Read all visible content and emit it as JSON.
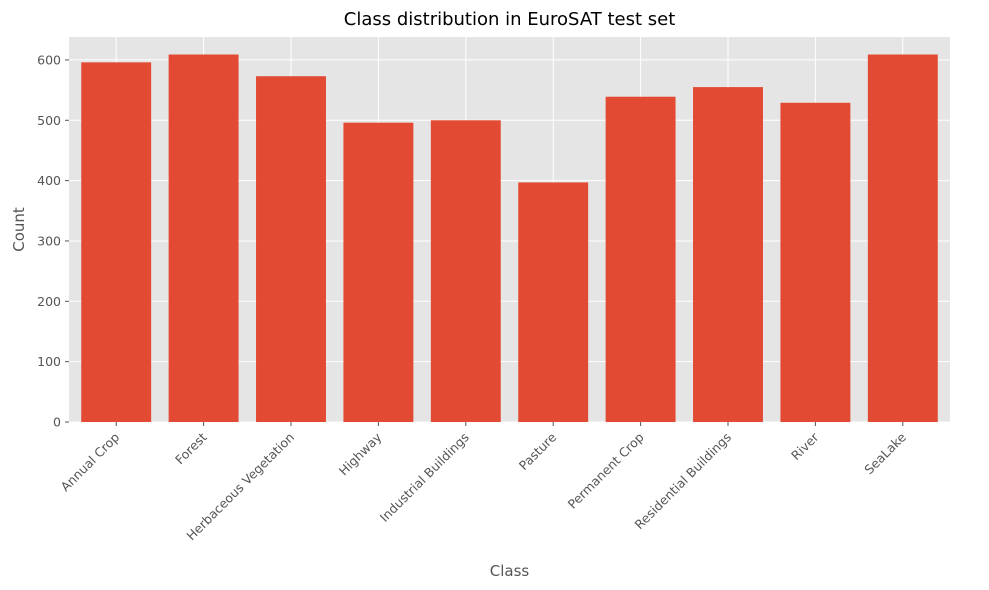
{
  "chart_data": {
    "type": "bar",
    "title": "Class distribution in EuroSAT test set",
    "xlabel": "Class",
    "ylabel": "Count",
    "categories": [
      "Annual Crop",
      "Forest",
      "Herbaceous Vegetation",
      "Highway",
      "Industrial Buildings",
      "Pasture",
      "Permanent Crop",
      "Residential Buildings",
      "River",
      "SeaLake"
    ],
    "values": [
      596,
      609,
      573,
      496,
      500,
      397,
      539,
      555,
      529,
      609
    ],
    "ylim": [
      0,
      638
    ],
    "yticks": [
      0,
      100,
      200,
      300,
      400,
      500,
      600
    ],
    "grid": true,
    "bar_color": "#E24A33",
    "background_color": "#E5E5E5",
    "style": "ggplot"
  }
}
